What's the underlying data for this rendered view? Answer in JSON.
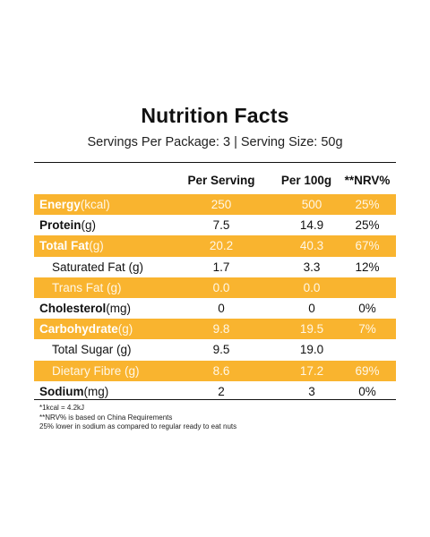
{
  "title": "Nutrition Facts",
  "subtitle": "Servings Per Package: 3 | Serving Size: 50g",
  "columns": {
    "per_serving": "Per Serving",
    "per_100g": "Per 100g",
    "nrv": "**NRV%"
  },
  "rows": [
    {
      "name": "Energy",
      "unit": " (kcal)",
      "serving": "250",
      "per100": "500",
      "nrv": "25%",
      "highlight": true,
      "bold": true
    },
    {
      "name": "Protein",
      "unit": " (g)",
      "serving": "7.5",
      "per100": "14.9",
      "nrv": "25%",
      "highlight": false,
      "bold": true
    },
    {
      "name": "Total Fat",
      "unit": " (g)",
      "serving": "20.2",
      "per100": "40.3",
      "nrv": "67%",
      "highlight": true,
      "bold": true
    },
    {
      "name": "Saturated Fat (g)",
      "unit": "",
      "serving": "1.7",
      "per100": "3.3",
      "nrv": "12%",
      "highlight": false,
      "bold": false
    },
    {
      "name": "Trans Fat (g)",
      "unit": "",
      "serving": "0.0",
      "per100": "0.0",
      "nrv": "",
      "highlight": true,
      "bold": false
    },
    {
      "name": "Cholesterol",
      "unit": " (mg)",
      "serving": "0",
      "per100": "0",
      "nrv": "0%",
      "highlight": false,
      "bold": true
    },
    {
      "name": "Carbohydrate",
      "unit": " (g)",
      "serving": "9.8",
      "per100": "19.5",
      "nrv": "7%",
      "highlight": true,
      "bold": true
    },
    {
      "name": "Total Sugar (g)",
      "unit": "",
      "serving": "9.5",
      "per100": "19.0",
      "nrv": "",
      "highlight": false,
      "bold": false
    },
    {
      "name": "Dietary Fibre (g)",
      "unit": "",
      "serving": "8.6",
      "per100": "17.2",
      "nrv": "69%",
      "highlight": true,
      "bold": false
    },
    {
      "name": "Sodium",
      "unit": " (mg)",
      "serving": "2",
      "per100": "3",
      "nrv": "0%",
      "highlight": false,
      "bold": true
    }
  ],
  "footnotes": {
    "kcal": "*1kcal = 4.2kJ",
    "nrv": "**NRV% is based on China Requirements",
    "sodium": "25% lower in sodium as compared to regular ready to eat nuts"
  },
  "colors": {
    "highlight": "#f9b42f",
    "text": "#111111"
  }
}
